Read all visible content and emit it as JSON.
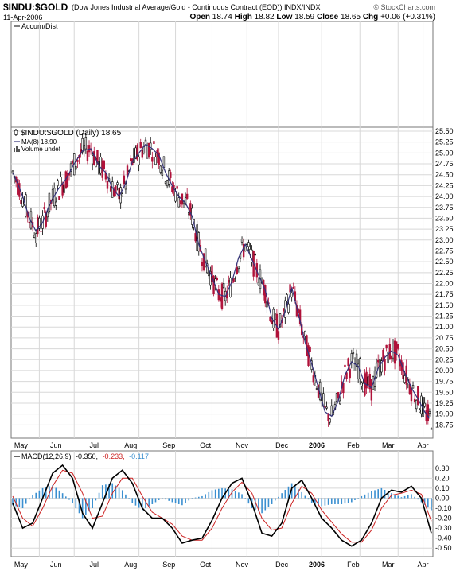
{
  "header": {
    "symbol": "$INDU:$GOLD",
    "description": "(Dow Jones Industrial Average/Gold - Continuous Contract (EOD))",
    "exchange": "INDX/INDX",
    "brand": "© StockCharts.com",
    "date": "11-Apr-2006",
    "open_label": "Open",
    "open": "18.74",
    "high_label": "High",
    "high": "18.82",
    "low_label": "Low",
    "low": "18.59",
    "close_label": "Close",
    "close": "18.65",
    "chg_label": "Chg",
    "chg": "+0.06 (+0.31%)"
  },
  "panels": {
    "accum_label": "Accum/Dist",
    "price_label": "$INDU:$GOLD (Daily) 18.65",
    "ma_label": "MA(8) 18.90",
    "volume_label": "Volume undef",
    "macd_label_name": "MACD(12,26,9)",
    "macd_value": "-0.350",
    "signal_value": "-0.233",
    "hist_value": "-0.117"
  },
  "colors": {
    "up": "#000000",
    "down": "#b0123a",
    "ma": "#34327a",
    "macd": "#000000",
    "signal": "#cc2222",
    "hist": "#3a8fd0",
    "grid": "#d8d8d8"
  },
  "chart_data": [
    {
      "type": "line",
      "title": "$INDU:$GOLD (Daily) 18.65",
      "x_labels": [
        "May",
        "Jun",
        "Jul",
        "Aug",
        "Sep",
        "Oct",
        "Nov",
        "Dec",
        "2006",
        "Feb",
        "Mar",
        "Apr"
      ],
      "yticks": [
        "25.50",
        "25.25",
        "25.00",
        "24.75",
        "24.50",
        "24.25",
        "24.00",
        "23.75",
        "23.50",
        "23.25",
        "23.00",
        "22.75",
        "22.50",
        "22.25",
        "22.00",
        "21.75",
        "21.50",
        "21.25",
        "21.00",
        "20.75",
        "20.50",
        "20.25",
        "20.00",
        "19.75",
        "19.50",
        "19.25",
        "19.00",
        "18.75"
      ],
      "ylim": [
        18.5,
        25.5
      ],
      "series": [
        {
          "name": "MA(8) 18.90",
          "x": [
            0,
            3,
            6,
            10,
            14,
            18,
            22,
            27,
            32,
            37,
            42,
            47,
            52,
            56,
            60,
            64,
            68,
            72,
            76,
            80,
            84,
            88,
            92,
            96,
            100,
            104,
            108,
            112,
            116,
            120,
            124,
            128,
            132,
            136,
            140,
            144,
            148,
            152,
            156,
            160,
            164,
            168,
            172,
            176,
            180,
            184,
            188,
            192,
            196,
            200,
            204,
            208,
            212,
            216,
            220,
            224,
            228,
            232,
            236,
            240,
            244,
            248,
            251
          ],
          "values": [
            24.55,
            24.3,
            24.0,
            23.5,
            23.2,
            23.4,
            23.8,
            24.15,
            24.4,
            24.75,
            25.05,
            25.1,
            24.7,
            24.55,
            24.2,
            24.0,
            24.3,
            24.8,
            25.0,
            25.2,
            25.1,
            24.95,
            24.55,
            24.25,
            24.0,
            23.85,
            23.55,
            22.9,
            22.5,
            22.15,
            21.75,
            21.7,
            22.05,
            22.6,
            22.9,
            22.55,
            22.2,
            21.85,
            21.2,
            20.95,
            21.35,
            21.9,
            21.3,
            20.65,
            20.15,
            19.6,
            19.05,
            18.95,
            19.3,
            19.9,
            20.2,
            20.1,
            19.7,
            19.6,
            20.05,
            20.3,
            20.45,
            20.35,
            19.95,
            19.6,
            19.35,
            19.05,
            18.9
          ]
        }
      ]
    },
    {
      "type": "line",
      "title": "MACD(12,26,9)",
      "yticks": [
        "0.30",
        "0.20",
        "0.10",
        "0.00",
        "-0.10",
        "-0.20",
        "-0.30",
        "-0.40",
        "-0.50"
      ],
      "ylim": [
        -0.57,
        0.37
      ],
      "series": [
        {
          "name": "MACD",
          "x": [
            0,
            6,
            12,
            18,
            24,
            30,
            36,
            42,
            48,
            54,
            60,
            66,
            72,
            78,
            84,
            90,
            96,
            102,
            108,
            114,
            120,
            126,
            132,
            138,
            144,
            150,
            156,
            162,
            168,
            174,
            180,
            186,
            192,
            198,
            204,
            210,
            216,
            222,
            228,
            234,
            240,
            246,
            252
          ],
          "values": [
            -0.05,
            -0.3,
            -0.25,
            0.0,
            0.25,
            0.33,
            0.2,
            -0.15,
            -0.3,
            -0.05,
            0.2,
            0.28,
            0.15,
            -0.1,
            -0.2,
            -0.2,
            -0.3,
            -0.45,
            -0.42,
            -0.4,
            -0.22,
            0.0,
            0.15,
            0.2,
            -0.05,
            -0.35,
            -0.38,
            -0.25,
            0.1,
            0.18,
            0.0,
            -0.2,
            -0.3,
            -0.42,
            -0.48,
            -0.42,
            -0.25,
            0.0,
            0.08,
            0.06,
            0.12,
            0.0,
            -0.35
          ]
        },
        {
          "name": "Signal",
          "x": [
            0,
            6,
            12,
            18,
            24,
            30,
            36,
            42,
            48,
            54,
            60,
            66,
            72,
            78,
            84,
            90,
            96,
            102,
            108,
            114,
            120,
            126,
            132,
            138,
            144,
            150,
            156,
            162,
            168,
            174,
            180,
            186,
            192,
            198,
            204,
            210,
            216,
            222,
            228,
            234,
            240,
            246,
            252
          ],
          "values": [
            0.02,
            -0.2,
            -0.28,
            -0.1,
            0.12,
            0.28,
            0.25,
            0.05,
            -0.2,
            -0.18,
            0.05,
            0.2,
            0.2,
            0.02,
            -0.14,
            -0.2,
            -0.26,
            -0.38,
            -0.42,
            -0.42,
            -0.3,
            -0.1,
            0.06,
            0.16,
            0.05,
            -0.2,
            -0.32,
            -0.3,
            -0.05,
            0.12,
            0.05,
            -0.12,
            -0.24,
            -0.36,
            -0.44,
            -0.44,
            -0.32,
            -0.1,
            0.03,
            0.05,
            0.08,
            0.04,
            -0.23
          ]
        }
      ]
    }
  ]
}
